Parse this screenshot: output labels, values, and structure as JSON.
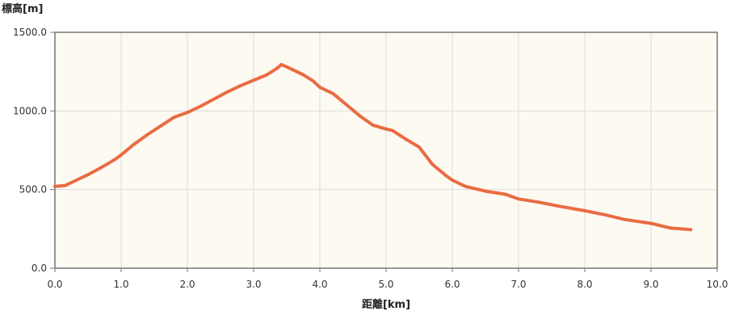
{
  "chart_data": {
    "type": "line",
    "title": "",
    "xlabel": "距離[km]",
    "ylabel": "標高[m]",
    "xlim": [
      0,
      10
    ],
    "ylim": [
      0,
      1500
    ],
    "x_ticks": [
      "0.0",
      "1.0",
      "2.0",
      "3.0",
      "4.0",
      "5.0",
      "6.0",
      "7.0",
      "8.0",
      "9.0",
      "10.0"
    ],
    "y_ticks": [
      "0.0",
      "500.0",
      "1000.0",
      "1500.0"
    ],
    "grid": true,
    "series": [
      {
        "color": "#e8643a",
        "x": [
          0.0,
          0.15,
          0.3,
          0.5,
          0.7,
          0.9,
          1.0,
          1.2,
          1.4,
          1.6,
          1.8,
          2.0,
          2.2,
          2.4,
          2.6,
          2.8,
          3.0,
          3.2,
          3.35,
          3.42,
          3.5,
          3.6,
          3.75,
          3.9,
          4.0,
          4.2,
          4.4,
          4.6,
          4.8,
          5.0,
          5.1,
          5.3,
          5.5,
          5.7,
          5.9,
          6.0,
          6.2,
          6.5,
          6.8,
          7.0,
          7.3,
          7.6,
          8.0,
          8.3,
          8.6,
          9.0,
          9.3,
          9.6
        ],
        "y": [
          520,
          525,
          555,
          595,
          640,
          690,
          720,
          790,
          850,
          905,
          960,
          990,
          1030,
          1075,
          1120,
          1160,
          1195,
          1230,
          1270,
          1295,
          1280,
          1260,
          1230,
          1190,
          1150,
          1110,
          1040,
          970,
          910,
          885,
          875,
          820,
          770,
          660,
          590,
          560,
          520,
          490,
          470,
          440,
          420,
          395,
          365,
          340,
          310,
          285,
          255,
          245
        ]
      }
    ]
  }
}
